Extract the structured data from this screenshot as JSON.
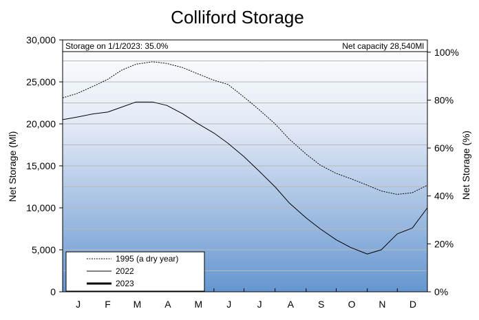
{
  "chart_data": {
    "type": "line",
    "title": "Colliford  Storage",
    "ylabel_left": "Net Storage (Ml)",
    "ylabel_right": "Net Storage (%)",
    "yticks_left": [
      "0",
      "5,000",
      "10,000",
      "15,000",
      "20,000",
      "25,000",
      "30,000"
    ],
    "yticks_right": [
      "0%",
      "20%",
      "40%",
      "60%",
      "80%",
      "100%"
    ],
    "ylim": [
      0,
      30000
    ],
    "capacity_ml": 28540,
    "months": [
      "J",
      "F",
      "M",
      "A",
      "M",
      "J",
      "J",
      "A",
      "S",
      "O",
      "N",
      "D"
    ],
    "annotation_left": "Storage on 1/1/2023: 35.0%",
    "annotation_right": "Net capacity 28,540Ml",
    "grid": true,
    "legend_position": "bottom-left",
    "series": [
      {
        "name": "1995 (a dry year)",
        "style": "dotted",
        "x": [
          1,
          15,
          32,
          46,
          60,
          74,
          91,
          105,
          121,
          135,
          152,
          166,
          182,
          196,
          213,
          227,
          244,
          258,
          274,
          288,
          305,
          319,
          335,
          350,
          365
        ],
        "values": [
          23100,
          23600,
          24500,
          25300,
          26400,
          27100,
          27400,
          27200,
          26700,
          26000,
          25200,
          24700,
          23200,
          21800,
          20000,
          18200,
          16400,
          15100,
          14100,
          13500,
          12700,
          12000,
          11600,
          11800,
          12700
        ]
      },
      {
        "name": "2022",
        "style": "solid",
        "x": [
          1,
          15,
          32,
          46,
          60,
          74,
          91,
          105,
          121,
          135,
          152,
          166,
          182,
          196,
          213,
          227,
          244,
          258,
          274,
          288,
          305,
          319,
          335,
          350,
          365
        ],
        "values": [
          20500,
          20800,
          21200,
          21400,
          22000,
          22600,
          22600,
          22200,
          21200,
          20100,
          18900,
          17700,
          16100,
          14500,
          12500,
          10600,
          8800,
          7500,
          6200,
          5300,
          4500,
          5000,
          6900,
          7600,
          10000
        ]
      },
      {
        "name": "2023",
        "style": "bold",
        "x": [],
        "values": []
      }
    ]
  }
}
